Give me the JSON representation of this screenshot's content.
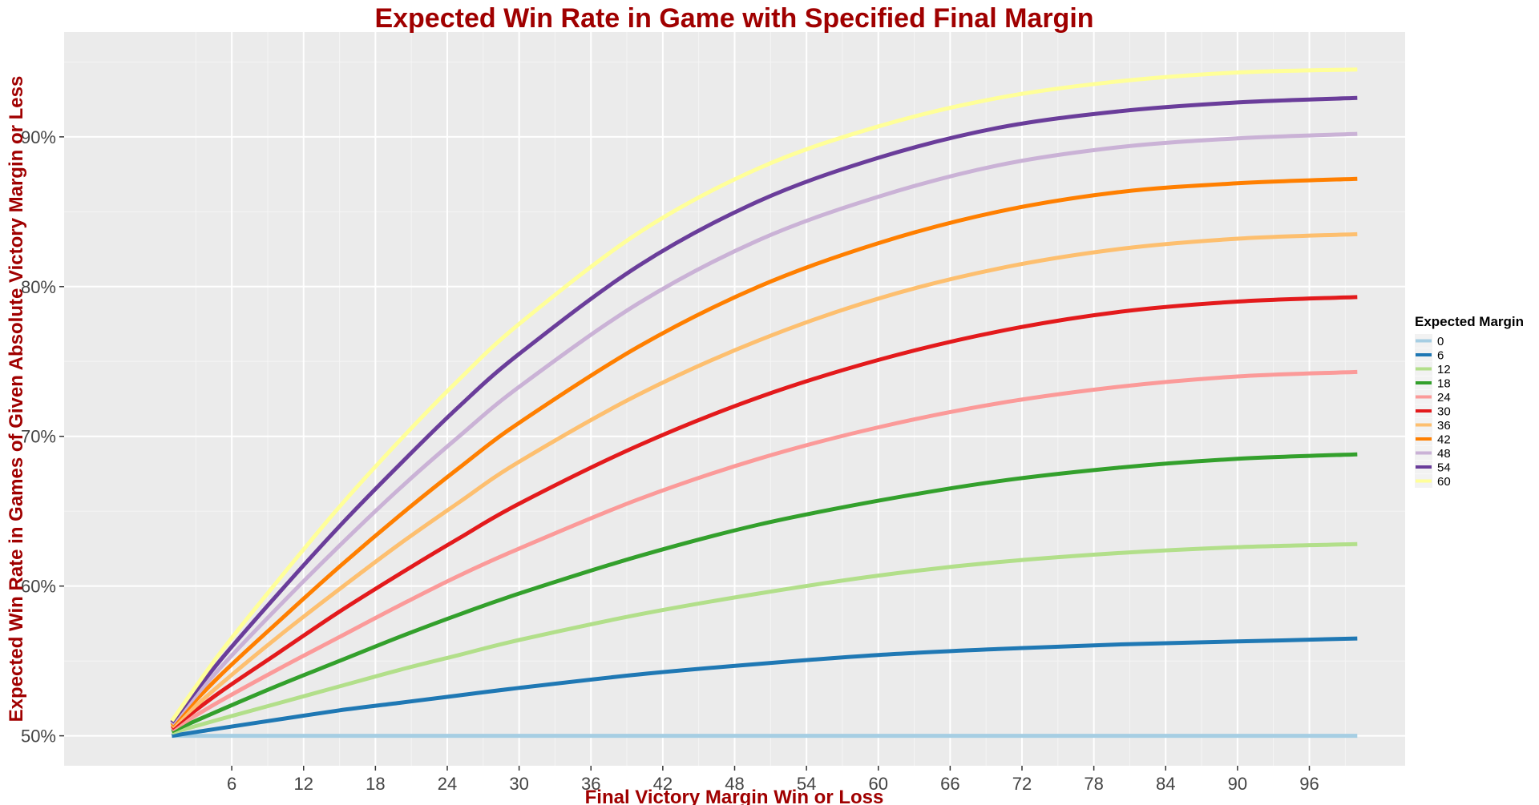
{
  "chart_data": {
    "type": "line",
    "title": "Expected Win Rate in Game with Specified Final Margin",
    "xlabel": "Final Victory Margin Win or Loss",
    "ylabel": "Expected Win Rate in Games of Given Absolute Victory Margin or Less",
    "xlim": [
      -8,
      104
    ],
    "ylim": [
      0.48,
      0.97
    ],
    "x_ticks": [
      6,
      12,
      18,
      24,
      30,
      36,
      42,
      48,
      54,
      60,
      66,
      72,
      78,
      84,
      90,
      96
    ],
    "x_tick_labels": [
      "6",
      "12",
      "18",
      "24",
      "30",
      "36",
      "42",
      "48",
      "54",
      "60",
      "66",
      "72",
      "78",
      "84",
      "90",
      "96"
    ],
    "y_ticks": [
      0.5,
      0.6,
      0.7,
      0.8,
      0.9
    ],
    "y_tick_labels": [
      "50%",
      "60%",
      "70%",
      "80%",
      "90%"
    ],
    "grid": true,
    "legend_title": "Expected Margin",
    "legend_position": "right",
    "x": [
      1,
      5,
      10,
      15,
      20,
      25,
      30,
      40,
      50,
      60,
      70,
      80,
      90,
      100
    ],
    "series": [
      {
        "name": "0",
        "color": "#a6cee3",
        "values": [
          0.5,
          0.5,
          0.5,
          0.5,
          0.5,
          0.5,
          0.5,
          0.5,
          0.5,
          0.5,
          0.5,
          0.5,
          0.5,
          0.5
        ]
      },
      {
        "name": "6",
        "color": "#1f78b4",
        "values": [
          0.5,
          0.505,
          0.511,
          0.517,
          0.522,
          0.527,
          0.532,
          0.541,
          0.548,
          0.554,
          0.558,
          0.561,
          0.563,
          0.565
        ]
      },
      {
        "name": "12",
        "color": "#b2df8a",
        "values": [
          0.502,
          0.511,
          0.522,
          0.533,
          0.544,
          0.554,
          0.564,
          0.581,
          0.595,
          0.607,
          0.616,
          0.622,
          0.626,
          0.628
        ]
      },
      {
        "name": "18",
        "color": "#33a02c",
        "values": [
          0.503,
          0.517,
          0.534,
          0.55,
          0.566,
          0.581,
          0.595,
          0.62,
          0.641,
          0.657,
          0.67,
          0.679,
          0.685,
          0.688
        ]
      },
      {
        "name": "24",
        "color": "#fb9a99",
        "values": [
          0.504,
          0.523,
          0.545,
          0.566,
          0.587,
          0.607,
          0.625,
          0.658,
          0.685,
          0.706,
          0.722,
          0.733,
          0.74,
          0.743
        ]
      },
      {
        "name": "30",
        "color": "#e31a1c",
        "values": [
          0.505,
          0.529,
          0.556,
          0.583,
          0.608,
          0.632,
          0.655,
          0.694,
          0.726,
          0.751,
          0.77,
          0.783,
          0.79,
          0.793
        ]
      },
      {
        "name": "36",
        "color": "#fdbf6f",
        "values": [
          0.506,
          0.534,
          0.567,
          0.598,
          0.628,
          0.656,
          0.683,
          0.728,
          0.764,
          0.792,
          0.812,
          0.825,
          0.832,
          0.835
        ]
      },
      {
        "name": "42",
        "color": "#ff7f00",
        "values": [
          0.507,
          0.54,
          0.577,
          0.613,
          0.647,
          0.679,
          0.709,
          0.76,
          0.8,
          0.829,
          0.85,
          0.863,
          0.869,
          0.872
        ]
      },
      {
        "name": "48",
        "color": "#cab2d6",
        "values": [
          0.508,
          0.545,
          0.587,
          0.627,
          0.665,
          0.7,
          0.733,
          0.789,
          0.831,
          0.86,
          0.881,
          0.893,
          0.899,
          0.902
        ]
      },
      {
        "name": "54",
        "color": "#6a3d9a",
        "values": [
          0.509,
          0.55,
          0.596,
          0.64,
          0.681,
          0.72,
          0.755,
          0.814,
          0.857,
          0.886,
          0.906,
          0.917,
          0.923,
          0.926
        ]
      },
      {
        "name": "60",
        "color": "#ffff99",
        "values": [
          0.51,
          0.555,
          0.605,
          0.653,
          0.697,
          0.738,
          0.775,
          0.836,
          0.879,
          0.907,
          0.926,
          0.937,
          0.943,
          0.945
        ]
      }
    ]
  }
}
